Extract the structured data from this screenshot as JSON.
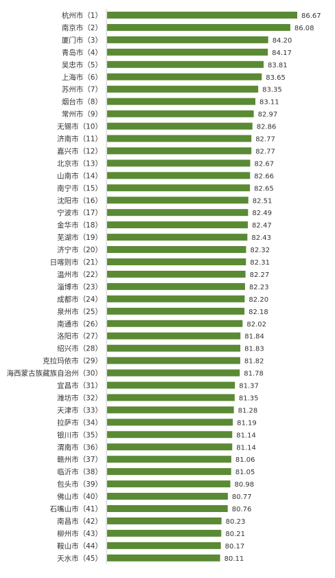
{
  "colors": {
    "bar": "#5a8a34",
    "axis": "#c8c8c8",
    "text": "#333333"
  },
  "chart_data": {
    "type": "bar",
    "orientation": "horizontal",
    "grid": false,
    "legend": "none",
    "categories": [
      "杭州市（1）",
      "南京市（2）",
      "厦门市（3）",
      "青岛市（4）",
      "吴忠市（5）",
      "上海市（6）",
      "苏州市（7）",
      "烟台市（8）",
      "常州市（9）",
      "无锡市（10）",
      "济南市（11）",
      "嘉兴市（12）",
      "北京市（13）",
      "山南市（14）",
      "南宁市（15）",
      "沈阳市（16）",
      "宁波市（17）",
      "金华市（18）",
      "芜湖市（19）",
      "济宁市（20）",
      "日喀则市（21）",
      "温州市（22）",
      "淄博市（23）",
      "成都市（24）",
      "泉州市（25）",
      "南通市（26）",
      "洛阳市（27）",
      "绍兴市（28）",
      "克拉玛依市（29）",
      "海西蒙古族藏族自治州（30）",
      "宜昌市（31）",
      "潍坊市（32）",
      "天津市（33）",
      "拉萨市（34）",
      "银川市（35）",
      "渭南市（36）",
      "赣州市（37）",
      "临沂市（38）",
      "包头市（39）",
      "佛山市（40）",
      "石嘴山市（41）",
      "南昌市（42）",
      "柳州市（43）",
      "鞍山市（44）",
      "天水市（45）"
    ],
    "values": [
      86.67,
      86.08,
      84.2,
      84.17,
      83.81,
      83.65,
      83.35,
      83.11,
      82.97,
      82.86,
      82.77,
      82.77,
      82.67,
      82.66,
      82.65,
      82.51,
      82.49,
      82.47,
      82.43,
      82.32,
      82.31,
      82.27,
      82.23,
      82.2,
      82.18,
      82.02,
      81.84,
      81.83,
      81.82,
      81.78,
      81.37,
      81.35,
      81.28,
      81.19,
      81.14,
      81.14,
      81.06,
      81.05,
      80.98,
      80.77,
      80.76,
      80.23,
      80.21,
      80.17,
      80.11
    ],
    "value_labels": [
      "86.67",
      "86.08",
      "84.20",
      "84.17",
      "83.81",
      "83.65",
      "83.35",
      "83.11",
      "82.97",
      "82.86",
      "82.77",
      "82.77",
      "82.67",
      "82.66",
      "82.65",
      "82.51",
      "82.49",
      "82.47",
      "82.43",
      "82.32",
      "82.31",
      "82.27",
      "82.23",
      "82.20",
      "82.18",
      "82.02",
      "81.84",
      "81.83",
      "81.82",
      "81.78",
      "81.37",
      "81.35",
      "81.28",
      "81.19",
      "81.14",
      "81.14",
      "81.06",
      "81.05",
      "80.98",
      "80.77",
      "80.76",
      "80.23",
      "80.21",
      "80.17",
      "80.11"
    ],
    "xlim": [
      70.5,
      86.67
    ],
    "title": "",
    "xlabel": "",
    "ylabel": ""
  }
}
